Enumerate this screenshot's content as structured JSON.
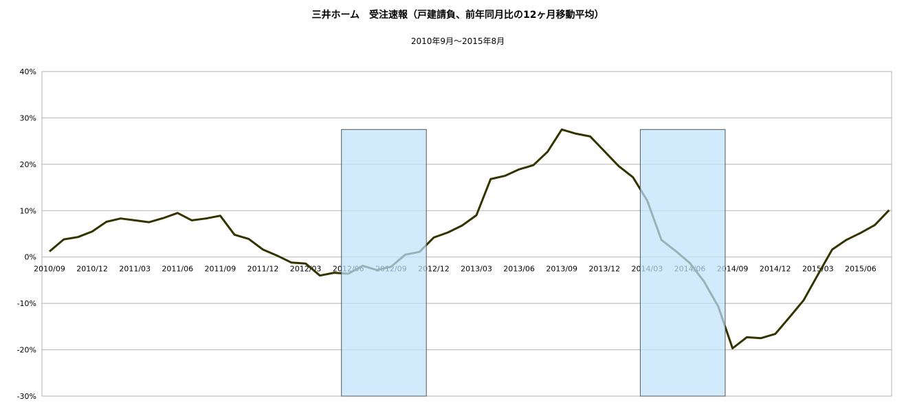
{
  "chart_data": {
    "type": "line",
    "title": "三井ホーム　受注速報（戸建請負、前年同月比の12ヶ月移動平均）",
    "subtitle": "2010年9月〜2015年8月",
    "xlabel": "",
    "ylabel": "",
    "ylim": [
      -30,
      40
    ],
    "y_ticks": [
      "40%",
      "30%",
      "20%",
      "10%",
      "0%",
      "-10%",
      "-20%",
      "-30%"
    ],
    "y_tick_values": [
      40,
      30,
      20,
      10,
      0,
      -10,
      -20,
      -30
    ],
    "x_tick_labels": [
      "2010/09",
      "2010/12",
      "2011/03",
      "2011/06",
      "2011/09",
      "2011/12",
      "2012/03",
      "2012/06",
      "2012/09",
      "2012/12",
      "2013/03",
      "2013/06",
      "2013/09",
      "2013/12",
      "2014/03",
      "2014/06",
      "2014/09",
      "2014/12",
      "2015/03",
      "2015/06"
    ],
    "grid": true,
    "line_color": "#333300",
    "highlight_color": "#bfe3fb",
    "highlight_regions": [
      {
        "from": "2012/06",
        "to": "2012/11",
        "ymin": -30,
        "ymax": 27.5
      },
      {
        "from": "2014/03",
        "to": "2014/08",
        "ymin": -30,
        "ymax": 27.5
      }
    ],
    "series": [
      {
        "x": [
          "2010/09",
          "2010/10",
          "2010/11",
          "2010/12",
          "2011/01",
          "2011/02",
          "2011/03",
          "2011/04",
          "2011/05",
          "2011/06",
          "2011/07",
          "2011/08",
          "2011/09",
          "2011/10",
          "2011/11",
          "2011/12",
          "2012/01",
          "2012/02",
          "2012/03",
          "2012/04",
          "2012/05",
          "2012/06",
          "2012/07",
          "2012/08",
          "2012/09",
          "2012/10",
          "2012/11",
          "2012/12",
          "2013/01",
          "2013/02",
          "2013/03",
          "2013/04",
          "2013/05",
          "2013/06",
          "2013/07",
          "2013/08",
          "2013/09",
          "2013/10",
          "2013/11",
          "2013/12",
          "2014/01",
          "2014/02",
          "2014/03",
          "2014/04",
          "2014/05",
          "2014/06",
          "2014/07",
          "2014/08",
          "2014/09",
          "2014/10",
          "2014/11",
          "2014/12",
          "2015/01",
          "2015/02",
          "2015/03",
          "2015/04",
          "2015/05",
          "2015/06",
          "2015/07",
          "2015/08"
        ],
        "values": [
          1.2,
          3.8,
          4.3,
          5.5,
          7.6,
          8.3,
          7.9,
          7.5,
          8.4,
          9.5,
          7.9,
          8.3,
          8.9,
          4.8,
          3.9,
          1.6,
          0.3,
          -1.2,
          -1.4,
          -4.0,
          -3.4,
          -3.6,
          -1.9,
          -2.8,
          -2.1,
          0.5,
          1.1,
          4.2,
          5.3,
          6.8,
          9.0,
          16.8,
          17.5,
          18.9,
          19.8,
          22.7,
          27.5,
          26.6,
          26.0,
          22.8,
          19.6,
          17.2,
          12.2,
          3.7,
          1.3,
          -1.3,
          -5.3,
          -10.7,
          -19.7,
          -17.3,
          -17.5,
          -16.6,
          -13.0,
          -9.3,
          -3.8,
          1.6,
          3.7,
          5.2,
          6.9,
          10.1
        ]
      }
    ]
  }
}
